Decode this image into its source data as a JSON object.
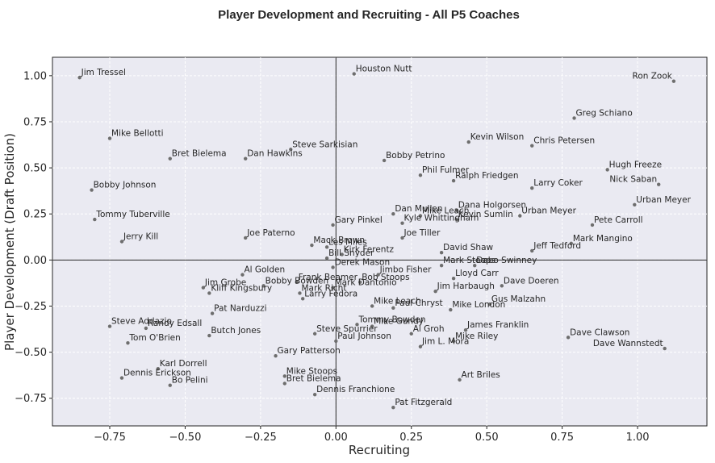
{
  "chart_data": {
    "type": "scatter",
    "title": "Player Development and Recruiting - All P5 Coaches",
    "xlabel": "Recruiting",
    "ylabel": "Player Development (Draft Position)",
    "xlim": [
      -0.94,
      1.23
    ],
    "ylim": [
      -0.9,
      1.1
    ],
    "xticks": [
      -0.75,
      -0.5,
      -0.25,
      0.0,
      0.25,
      0.5,
      0.75,
      1.0
    ],
    "xtick_labels": [
      "−0.75",
      "−0.50",
      "−0.25",
      "0.00",
      "0.25",
      "0.50",
      "0.75",
      "1.00"
    ],
    "yticks": [
      -0.75,
      -0.5,
      -0.25,
      0.0,
      0.25,
      0.5,
      0.75,
      1.0
    ],
    "ytick_labels": [
      "−0.75",
      "−0.50",
      "−0.25",
      "0.00",
      "0.25",
      "0.50",
      "0.75",
      "1.00"
    ],
    "grid": true,
    "reference_lines": {
      "x": 0,
      "y": 0
    },
    "colors": {
      "background": "#eaeaf2",
      "point": "#6e6e6e",
      "text": "#262626"
    },
    "points": [
      {
        "label": "Jim Tressel",
        "x": -0.85,
        "y": 0.99
      },
      {
        "label": "Houston Nutt",
        "x": 0.06,
        "y": 1.01
      },
      {
        "label": "Ron Zook",
        "x": 1.12,
        "y": 0.97
      },
      {
        "label": "Greg Schiano",
        "x": 0.79,
        "y": 0.77
      },
      {
        "label": "Mike Bellotti",
        "x": -0.75,
        "y": 0.66
      },
      {
        "label": "Kevin Wilson",
        "x": 0.44,
        "y": 0.64
      },
      {
        "label": "Chris Petersen",
        "x": 0.65,
        "y": 0.62
      },
      {
        "label": "Steve Sarkisian",
        "x": -0.15,
        "y": 0.6
      },
      {
        "label": "Bret Bielema",
        "x": -0.55,
        "y": 0.55
      },
      {
        "label": "Dan Hawkins",
        "x": -0.3,
        "y": 0.55
      },
      {
        "label": "Bobby Petrino",
        "x": 0.16,
        "y": 0.54
      },
      {
        "label": "Hugh Freeze",
        "x": 0.9,
        "y": 0.49
      },
      {
        "label": "Phil Fulmer",
        "x": 0.28,
        "y": 0.46
      },
      {
        "label": "Ralph Friedgen",
        "x": 0.39,
        "y": 0.43
      },
      {
        "label": "Nick Saban",
        "x": 1.07,
        "y": 0.41
      },
      {
        "label": "Larry Coker",
        "x": 0.65,
        "y": 0.39
      },
      {
        "label": "Bobby Johnson",
        "x": -0.81,
        "y": 0.38
      },
      {
        "label": "Urban Meyer",
        "x": 0.99,
        "y": 0.3
      },
      {
        "label": "Dana Holgorsen",
        "x": 0.4,
        "y": 0.27
      },
      {
        "label": "Dan Mullen",
        "x": 0.19,
        "y": 0.25
      },
      {
        "label": "Mike Leach",
        "x": 0.28,
        "y": 0.24
      },
      {
        "label": "Gary Pinkel",
        "x": -0.01,
        "y": 0.19
      },
      {
        "label": "Tommy Tuberville",
        "x": -0.8,
        "y": 0.22
      },
      {
        "label": "Kyle Whittingham",
        "x": 0.22,
        "y": 0.2
      },
      {
        "label": "Urban Meyer",
        "x": 0.61,
        "y": 0.24
      },
      {
        "label": "Pete Carroll",
        "x": 0.85,
        "y": 0.19
      },
      {
        "label": "Kevin Sumlin",
        "x": 0.4,
        "y": 0.22
      },
      {
        "label": "Joe Paterno",
        "x": -0.3,
        "y": 0.12
      },
      {
        "label": "Jerry Kill",
        "x": -0.71,
        "y": 0.1
      },
      {
        "label": "Joe Tiller",
        "x": 0.22,
        "y": 0.12
      },
      {
        "label": "Mark Mangino",
        "x": 0.78,
        "y": 0.09
      },
      {
        "label": "Les Miles",
        "x": -0.03,
        "y": 0.07
      },
      {
        "label": "Mack Brown",
        "x": -0.08,
        "y": 0.08
      },
      {
        "label": "David Shaw",
        "x": 0.35,
        "y": 0.04
      },
      {
        "label": "Jeff Tedford",
        "x": 0.65,
        "y": 0.05
      },
      {
        "label": "Kirk Ferentz",
        "x": 0.02,
        "y": 0.03
      },
      {
        "label": "Bill Snyder",
        "x": -0.03,
        "y": 0.01
      },
      {
        "label": "Derek Mason",
        "x": -0.01,
        "y": -0.04
      },
      {
        "label": "Mark Stoops",
        "x": 0.35,
        "y": -0.03
      },
      {
        "label": "Dabo Swinney",
        "x": 0.46,
        "y": -0.03
      },
      {
        "label": "Al Golden",
        "x": -0.31,
        "y": -0.08
      },
      {
        "label": "Jimbo Fisher",
        "x": 0.14,
        "y": -0.08
      },
      {
        "label": "Frank Beamer",
        "x": -0.13,
        "y": -0.12
      },
      {
        "label": "Bob Stoops",
        "x": 0.08,
        "y": -0.12
      },
      {
        "label": "Lloyd Carr",
        "x": 0.39,
        "y": -0.1
      },
      {
        "label": "Bobby Bowden",
        "x": -0.24,
        "y": -0.14
      },
      {
        "label": "Jim Grobe",
        "x": -0.44,
        "y": -0.15
      },
      {
        "label": "Dave Doeren",
        "x": 0.55,
        "y": -0.14
      },
      {
        "label": "Mark Richt",
        "x": -0.12,
        "y": -0.18
      },
      {
        "label": "Mark Dantonio",
        "x": -0.01,
        "y": -0.15
      },
      {
        "label": "Kliff Kingsbury",
        "x": -0.42,
        "y": -0.18
      },
      {
        "label": "Jim Harbaugh",
        "x": 0.33,
        "y": -0.17
      },
      {
        "label": "Larry Fedora",
        "x": -0.11,
        "y": -0.21
      },
      {
        "label": "Paul Chryst",
        "x": 0.19,
        "y": -0.26
      },
      {
        "label": "Mike Leach",
        "x": 0.12,
        "y": -0.25
      },
      {
        "label": "Gus Malzahn",
        "x": 0.51,
        "y": -0.24
      },
      {
        "label": "Pat Narduzzi",
        "x": -0.41,
        "y": -0.29
      },
      {
        "label": "Mike London",
        "x": 0.38,
        "y": -0.27
      },
      {
        "label": "Steve Addazio",
        "x": -0.75,
        "y": -0.36
      },
      {
        "label": "Randy Edsall",
        "x": -0.63,
        "y": -0.37
      },
      {
        "label": "Butch Jones",
        "x": -0.42,
        "y": -0.41
      },
      {
        "label": "Steve Spurrier",
        "x": -0.07,
        "y": -0.4
      },
      {
        "label": "Mike Gundy",
        "x": 0.12,
        "y": -0.36
      },
      {
        "label": "Tommy Bowden",
        "x": 0.07,
        "y": -0.35
      },
      {
        "label": "James Franklin",
        "x": 0.43,
        "y": -0.38
      },
      {
        "label": "Dave Clawson",
        "x": 0.77,
        "y": -0.42
      },
      {
        "label": "Al Groh",
        "x": 0.25,
        "y": -0.4
      },
      {
        "label": "Mike Riley",
        "x": 0.39,
        "y": -0.44
      },
      {
        "label": "Tom O'Brien",
        "x": -0.69,
        "y": -0.45
      },
      {
        "label": "Paul Johnson",
        "x": 0.0,
        "y": -0.44
      },
      {
        "label": "Jim L. Mora",
        "x": 0.28,
        "y": -0.47
      },
      {
        "label": "Dave Wannstedt",
        "x": 1.09,
        "y": -0.48
      },
      {
        "label": "Gary Patterson",
        "x": -0.2,
        "y": -0.52
      },
      {
        "label": "Karl Dorrell",
        "x": -0.59,
        "y": -0.59
      },
      {
        "label": "Dennis Erickson",
        "x": -0.71,
        "y": -0.64
      },
      {
        "label": "Mike Stoops",
        "x": -0.17,
        "y": -0.63
      },
      {
        "label": "Art Briles",
        "x": 0.41,
        "y": -0.65
      },
      {
        "label": "Bo Pelini",
        "x": -0.55,
        "y": -0.68
      },
      {
        "label": "Bret Bielema",
        "x": -0.17,
        "y": -0.67
      },
      {
        "label": "Dennis Franchione",
        "x": -0.07,
        "y": -0.73
      },
      {
        "label": "Pat Fitzgerald",
        "x": 0.19,
        "y": -0.8
      }
    ]
  }
}
